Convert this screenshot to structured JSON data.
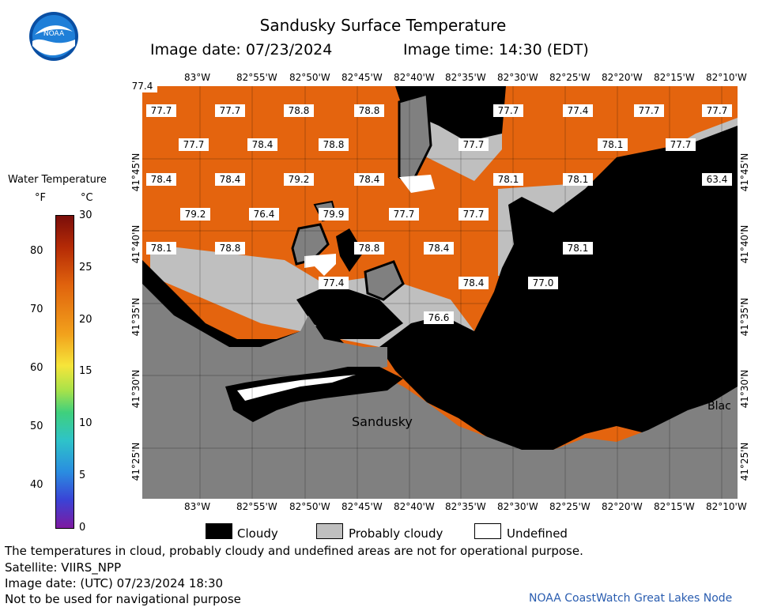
{
  "header": {
    "title": "Sandusky Surface Temperature",
    "date_label": "Image date: 07/23/2024",
    "time_label": "Image time: 14:30 (EDT)"
  },
  "logo": {
    "text": "NOAA"
  },
  "colorbar": {
    "title": "Water Temperature",
    "unit_f": "°F",
    "unit_c": "°C",
    "f_ticks": [
      "80",
      "70",
      "60",
      "50",
      "40"
    ],
    "c_ticks": [
      "30",
      "25",
      "20",
      "15",
      "10",
      "5",
      "0"
    ]
  },
  "axes": {
    "lon_ticks": [
      "83°W",
      "82°55'W",
      "82°50'W",
      "82°45'W",
      "82°40'W",
      "82°35'W",
      "82°30'W",
      "82°25'W",
      "82°20'W",
      "82°15'W",
      "82°10'W"
    ],
    "lat_ticks": [
      "41°45'N",
      "41°40'N",
      "41°35'N",
      "41°30'N",
      "41°25'N"
    ]
  },
  "map": {
    "place_labels": [
      "Sandusky",
      "Blac"
    ],
    "temps": [
      {
        "v": "77.7"
      },
      {
        "v": "77.7"
      },
      {
        "v": "78.8"
      },
      {
        "v": "78.8"
      },
      {
        "v": "77.7"
      },
      {
        "v": "77.4"
      },
      {
        "v": "77.7"
      },
      {
        "v": "77.7"
      },
      {
        "v": "77.7"
      },
      {
        "v": "78.4"
      },
      {
        "v": "78.8"
      },
      {
        "v": "77.7"
      },
      {
        "v": "78.1"
      },
      {
        "v": "77.7"
      },
      {
        "v": "78.4"
      },
      {
        "v": "78.4"
      },
      {
        "v": "79.2"
      },
      {
        "v": "78.4"
      },
      {
        "v": "78.1"
      },
      {
        "v": "78.1"
      },
      {
        "v": "63.4"
      },
      {
        "v": "79.2"
      },
      {
        "v": "76.4"
      },
      {
        "v": "79.9"
      },
      {
        "v": "77.7"
      },
      {
        "v": "77.7"
      },
      {
        "v": "78.1"
      },
      {
        "v": "78.8"
      },
      {
        "v": "78.8"
      },
      {
        "v": "78.4"
      },
      {
        "v": "78.1"
      },
      {
        "v": "77.4"
      },
      {
        "v": "78.4"
      },
      {
        "v": "77.0"
      },
      {
        "v": "76.6"
      },
      {
        "v": "77.4"
      }
    ]
  },
  "legend": {
    "cloudy": "Cloudy",
    "probably_cloudy": "Probably cloudy",
    "undefined": "Undefined",
    "colors": {
      "cloudy": "#000000",
      "probably_cloudy": "#bfbfbf",
      "undefined": "#ffffff",
      "water": "#e4640e",
      "land": "#808080"
    }
  },
  "footer": {
    "disclaimer": "The temperatures in cloud, probably cloudy and undefined areas are not for operational purpose.",
    "satellite": "Satellite: VIIRS_NPP",
    "utc_date": "Image date: (UTC) 07/23/2024  18:30",
    "nav": "Not to be used for navigational purpose",
    "credit": "NOAA CoastWatch Great Lakes Node"
  }
}
